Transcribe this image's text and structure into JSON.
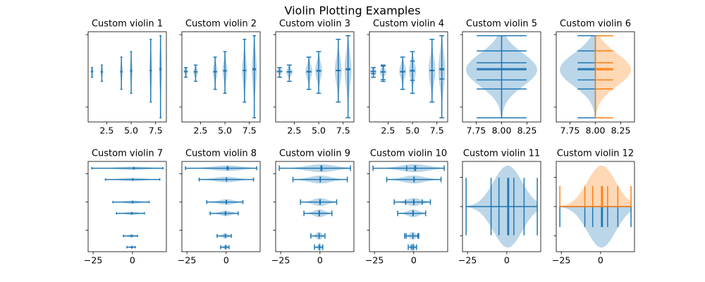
{
  "title": "Violin Plotting Examples",
  "chart_data": [
    {
      "type": "violin",
      "title": "Custom violin 1",
      "orientation": "vertical",
      "widths": 0.3,
      "xlim": [
        0.6,
        8.6
      ],
      "ylim": [
        -28.2,
        21.6
      ],
      "xticks": [
        2.5,
        {
          "value": 5,
          "label": "5.0"
        },
        7.5
      ],
      "yticks": [
        -20,
        20
      ],
      "show_yticklabels": false,
      "series": [
        {
          "color": "#1f77b4",
          "side": "both",
          "violins": [
            {
              "position": 1,
              "min": -3.5,
              "max": 1.8,
              "mean": -0.4,
              "median": -0.3
            },
            {
              "position": 2,
              "min": -5.8,
              "max": 3.2,
              "mean": -0.5,
              "median": -0.6
            },
            {
              "position": 4,
              "min": -10.2,
              "max": 7.6,
              "mean": -0.6,
              "median": -0.3
            },
            {
              "position": 5,
              "min": -12.4,
              "max": 10.6,
              "mean": -0.1,
              "median": 0.2
            },
            {
              "position": 7,
              "min": -17.2,
              "max": 17.4,
              "mean": 0.3,
              "median": 0.1
            },
            {
              "position": 8,
              "min": -25.9,
              "max": 19.4,
              "mean": 1.2,
              "median": 0.6
            }
          ]
        }
      ]
    },
    {
      "type": "violin",
      "title": "Custom violin 2",
      "orientation": "vertical",
      "widths": 0.5,
      "xlim": [
        0.6,
        8.6
      ],
      "ylim": [
        -28.2,
        21.6
      ],
      "xticks": [
        2.5,
        {
          "value": 5,
          "label": "5.0"
        },
        7.5
      ],
      "yticks": [
        -20,
        20
      ],
      "show_yticklabels": false,
      "series": [
        {
          "color": "#1f77b4",
          "side": "both",
          "violins": [
            {
              "position": 1,
              "min": -3.5,
              "max": 1.8,
              "mean": -0.4,
              "median": -0.3
            },
            {
              "position": 2,
              "min": -5.8,
              "max": 3.2,
              "mean": -0.5,
              "median": -0.6
            },
            {
              "position": 4,
              "min": -10.2,
              "max": 7.6,
              "mean": -0.6,
              "median": -0.3
            },
            {
              "position": 5,
              "min": -12.4,
              "max": 10.6,
              "mean": -0.1,
              "median": 0.2
            },
            {
              "position": 7,
              "min": -17.2,
              "max": 17.4,
              "mean": 0.3,
              "median": 0.1
            },
            {
              "position": 8,
              "min": -25.9,
              "max": 19.4,
              "mean": 1.2,
              "median": 0.6
            }
          ]
        }
      ]
    },
    {
      "type": "violin",
      "title": "Custom violin 3",
      "orientation": "vertical",
      "widths": 0.7,
      "xlim": [
        0.6,
        8.6
      ],
      "ylim": [
        -28.2,
        21.6
      ],
      "xticks": [
        2.5,
        {
          "value": 5,
          "label": "5.0"
        },
        7.5
      ],
      "yticks": [
        -20,
        20
      ],
      "show_yticklabels": false,
      "series": [
        {
          "color": "#1f77b4",
          "side": "both",
          "violins": [
            {
              "position": 1,
              "min": -3.5,
              "max": 1.8,
              "mean": -0.4,
              "median": -0.3
            },
            {
              "position": 2,
              "min": -5.8,
              "max": 3.2,
              "mean": -0.5,
              "median": -0.6
            },
            {
              "position": 4,
              "min": -10.2,
              "max": 7.6,
              "mean": -0.6,
              "median": -0.3
            },
            {
              "position": 5,
              "min": -12.4,
              "max": 10.6,
              "mean": -0.1,
              "median": 0.2
            },
            {
              "position": 7,
              "min": -17.2,
              "max": 17.4,
              "mean": 0.3,
              "median": 0.1
            },
            {
              "position": 8,
              "min": -25.9,
              "max": 19.4,
              "mean": 1.2,
              "median": 0.6
            }
          ]
        }
      ]
    },
    {
      "type": "violin",
      "title": "Custom violin 4",
      "orientation": "vertical",
      "widths": 0.7,
      "xlim": [
        0.6,
        8.6
      ],
      "ylim": [
        -28.2,
        21.6
      ],
      "xticks": [
        2.5,
        {
          "value": 5,
          "label": "5.0"
        },
        7.5
      ],
      "yticks": [
        -20,
        20
      ],
      "show_yticklabels": false,
      "series": [
        {
          "color": "#1f77b4",
          "side": "both",
          "violins": [
            {
              "position": 1,
              "min": -3.5,
              "max": 1.8,
              "mean": -0.4,
              "median": -0.3,
              "quantiles": [
                -1.6
              ]
            },
            {
              "position": 2,
              "min": -5.8,
              "max": 3.2,
              "mean": -0.5,
              "median": -0.6,
              "quantiles": [
                -4.8,
                2.6
              ]
            },
            {
              "position": 4,
              "min": -10.2,
              "max": 7.6,
              "mean": -0.6,
              "median": -0.3,
              "quantiles": [
                -0.3
              ]
            },
            {
              "position": 5,
              "min": -12.4,
              "max": 10.6,
              "mean": -0.1,
              "median": 0.2,
              "quantiles": [
                -5.2,
                5.4
              ]
            },
            {
              "position": 7,
              "min": -17.2,
              "max": 17.4,
              "mean": 0.3,
              "median": 0.1,
              "quantiles": []
            },
            {
              "position": 8,
              "min": -25.9,
              "max": 19.4,
              "mean": 1.2,
              "median": 0.6,
              "quantiles": [
                -4.5
              ]
            }
          ]
        }
      ]
    },
    {
      "type": "violin",
      "title": "Custom violin 5",
      "orientation": "vertical",
      "widths": 0.7,
      "xlim": [
        7.615,
        8.385
      ],
      "ylim": [
        -28.2,
        21.6
      ],
      "xticks": [
        7.75,
        {
          "value": 8,
          "label": "8.00"
        },
        8.25
      ],
      "yticks": [
        -20,
        20
      ],
      "show_yticklabels": false,
      "series": [
        {
          "color": "#1f77b4",
          "side": "both",
          "violins": [
            {
              "position": 8,
              "min": -25.9,
              "max": 19.4,
              "mean": 1.2,
              "median": 0.6,
              "quantiles": [
                -10,
                -5,
                4.5,
                11
              ]
            }
          ]
        }
      ]
    },
    {
      "type": "violin",
      "title": "Custom violin 6",
      "orientation": "vertical",
      "widths": 0.7,
      "xlim": [
        7.615,
        8.385
      ],
      "ylim": [
        -28.2,
        21.6
      ],
      "xticks": [
        7.75,
        {
          "value": 8,
          "label": "8.00"
        },
        8.25
      ],
      "yticks": [
        -20,
        20
      ],
      "show_yticklabels": false,
      "series": [
        {
          "color": "#1f77b4",
          "side": "low",
          "violins": [
            {
              "position": 8,
              "min": -25.9,
              "max": 19.4,
              "mean": 1.2,
              "median": 0.6,
              "quantiles": [
                -10,
                -5,
                4.5,
                11
              ]
            }
          ]
        },
        {
          "color": "#ff7f0e",
          "side": "high",
          "violins": [
            {
              "position": 8,
              "min": -25.9,
              "max": 19.4,
              "mean": 1.2,
              "median": 0.6,
              "quantiles": [
                -10,
                -5,
                4.5,
                11
              ]
            }
          ]
        }
      ]
    },
    {
      "type": "violin",
      "title": "Custom violin 7",
      "orientation": "horizontal",
      "widths": 0.3,
      "xlim": [
        -28.2,
        21.6
      ],
      "ylim": [
        0.6,
        8.6
      ],
      "xticks": [
        {
          "value": -25,
          "label": "−25"
        },
        0
      ],
      "yticks": [
        2.5,
        5,
        7.5
      ],
      "show_yticklabels": false,
      "series": [
        {
          "color": "#1f77b4",
          "side": "both",
          "violins": [
            {
              "position": 1,
              "min": -3.5,
              "max": 1.8,
              "mean": -0.4,
              "median": -0.3
            },
            {
              "position": 2,
              "min": -5.8,
              "max": 3.2,
              "mean": -0.5,
              "median": -0.6
            },
            {
              "position": 4,
              "min": -10.2,
              "max": 7.6,
              "mean": -0.6,
              "median": -0.3
            },
            {
              "position": 5,
              "min": -12.4,
              "max": 10.6,
              "mean": -0.1,
              "median": 0.2
            },
            {
              "position": 7,
              "min": -17.2,
              "max": 17.4,
              "mean": 0.3,
              "median": 0.1
            },
            {
              "position": 8,
              "min": -25.9,
              "max": 19.4,
              "mean": 1.2,
              "median": 0.6
            }
          ]
        }
      ]
    },
    {
      "type": "violin",
      "title": "Custom violin 8",
      "orientation": "horizontal",
      "widths": 0.5,
      "xlim": [
        -28.2,
        21.6
      ],
      "ylim": [
        0.6,
        8.6
      ],
      "xticks": [
        {
          "value": -25,
          "label": "−25"
        },
        0
      ],
      "yticks": [
        2.5,
        5,
        7.5
      ],
      "show_yticklabels": false,
      "series": [
        {
          "color": "#1f77b4",
          "side": "both",
          "violins": [
            {
              "position": 1,
              "min": -3.5,
              "max": 1.8,
              "mean": -0.4,
              "median": -0.3
            },
            {
              "position": 2,
              "min": -5.8,
              "max": 3.2,
              "mean": -0.5,
              "median": -0.6
            },
            {
              "position": 4,
              "min": -10.2,
              "max": 7.6,
              "mean": -0.6,
              "median": -0.3
            },
            {
              "position": 5,
              "min": -12.4,
              "max": 10.6,
              "mean": -0.1,
              "median": 0.2
            },
            {
              "position": 7,
              "min": -17.2,
              "max": 17.4,
              "mean": 0.3,
              "median": 0.1
            },
            {
              "position": 8,
              "min": -25.9,
              "max": 19.4,
              "mean": 1.2,
              "median": 0.6
            }
          ]
        }
      ]
    },
    {
      "type": "violin",
      "title": "Custom violin 9",
      "orientation": "horizontal",
      "widths": 0.7,
      "xlim": [
        -28.2,
        21.6
      ],
      "ylim": [
        0.6,
        8.6
      ],
      "xticks": [
        {
          "value": -25,
          "label": "−25"
        },
        0
      ],
      "yticks": [
        2.5,
        5,
        7.5
      ],
      "show_yticklabels": false,
      "series": [
        {
          "color": "#1f77b4",
          "side": "both",
          "violins": [
            {
              "position": 1,
              "min": -3.5,
              "max": 1.8,
              "mean": -0.4,
              "median": -0.3
            },
            {
              "position": 2,
              "min": -5.8,
              "max": 3.2,
              "mean": -0.5,
              "median": -0.6
            },
            {
              "position": 4,
              "min": -10.2,
              "max": 7.6,
              "mean": -0.6,
              "median": -0.3
            },
            {
              "position": 5,
              "min": -12.4,
              "max": 10.6,
              "mean": -0.1,
              "median": 0.2
            },
            {
              "position": 7,
              "min": -17.2,
              "max": 17.4,
              "mean": 0.3,
              "median": 0.1
            },
            {
              "position": 8,
              "min": -25.9,
              "max": 19.4,
              "mean": 1.2,
              "median": 0.6
            }
          ]
        }
      ]
    },
    {
      "type": "violin",
      "title": "Custom violin 10",
      "orientation": "horizontal",
      "widths": 0.7,
      "xlim": [
        -28.2,
        21.6
      ],
      "ylim": [
        0.6,
        8.6
      ],
      "xticks": [
        {
          "value": -25,
          "label": "−25"
        },
        0
      ],
      "yticks": [
        2.5,
        5,
        7.5
      ],
      "show_yticklabels": false,
      "series": [
        {
          "color": "#1f77b4",
          "side": "both",
          "violins": [
            {
              "position": 1,
              "min": -3.5,
              "max": 1.8,
              "mean": -0.4,
              "median": -0.3,
              "quantiles": [
                -1.6
              ]
            },
            {
              "position": 2,
              "min": -5.8,
              "max": 3.2,
              "mean": -0.5,
              "median": -0.6,
              "quantiles": [
                -4.8,
                2.6
              ]
            },
            {
              "position": 4,
              "min": -10.2,
              "max": 7.6,
              "mean": -0.6,
              "median": -0.3,
              "quantiles": [
                -0.3
              ]
            },
            {
              "position": 5,
              "min": -12.4,
              "max": 10.6,
              "mean": -0.1,
              "median": 0.2,
              "quantiles": [
                -5.2,
                5.4
              ]
            },
            {
              "position": 7,
              "min": -17.2,
              "max": 17.4,
              "mean": 0.3,
              "median": 0.1,
              "quantiles": []
            },
            {
              "position": 8,
              "min": -25.9,
              "max": 19.4,
              "mean": 1.2,
              "median": 0.6,
              "quantiles": [
                -4.5
              ]
            }
          ]
        }
      ]
    },
    {
      "type": "violin",
      "title": "Custom violin 11",
      "orientation": "horizontal",
      "widths": 0.7,
      "xlim": [
        -28.2,
        21.6
      ],
      "ylim": [
        7.615,
        8.385
      ],
      "xticks": [
        {
          "value": -25,
          "label": "−25"
        },
        0
      ],
      "yticks": [
        7.75,
        8,
        8.25
      ],
      "show_yticklabels": false,
      "series": [
        {
          "color": "#1f77b4",
          "side": "both",
          "violins": [
            {
              "position": 8,
              "min": -25.9,
              "max": 19.4,
              "mean": 1.2,
              "median": 0.6,
              "quantiles": [
                -10,
                -5,
                4.5,
                11
              ]
            }
          ]
        }
      ]
    },
    {
      "type": "violin",
      "title": "Custom violin 12",
      "orientation": "horizontal",
      "widths": 0.7,
      "xlim": [
        -28.2,
        21.6
      ],
      "ylim": [
        7.615,
        8.385
      ],
      "xticks": [
        {
          "value": -25,
          "label": "−25"
        },
        0
      ],
      "yticks": [
        7.75,
        8,
        8.25
      ],
      "show_yticklabels": false,
      "series": [
        {
          "color": "#1f77b4",
          "side": "low",
          "violins": [
            {
              "position": 8,
              "min": -25.9,
              "max": 19.4,
              "mean": 1.2,
              "median": 0.6,
              "quantiles": [
                -10,
                -5,
                4.5,
                11
              ]
            }
          ]
        },
        {
          "color": "#ff7f0e",
          "side": "high",
          "violins": [
            {
              "position": 8,
              "min": -25.9,
              "max": 19.4,
              "mean": 1.2,
              "median": 0.6,
              "quantiles": [
                -10,
                -5,
                4.5,
                11
              ]
            }
          ]
        }
      ]
    }
  ]
}
